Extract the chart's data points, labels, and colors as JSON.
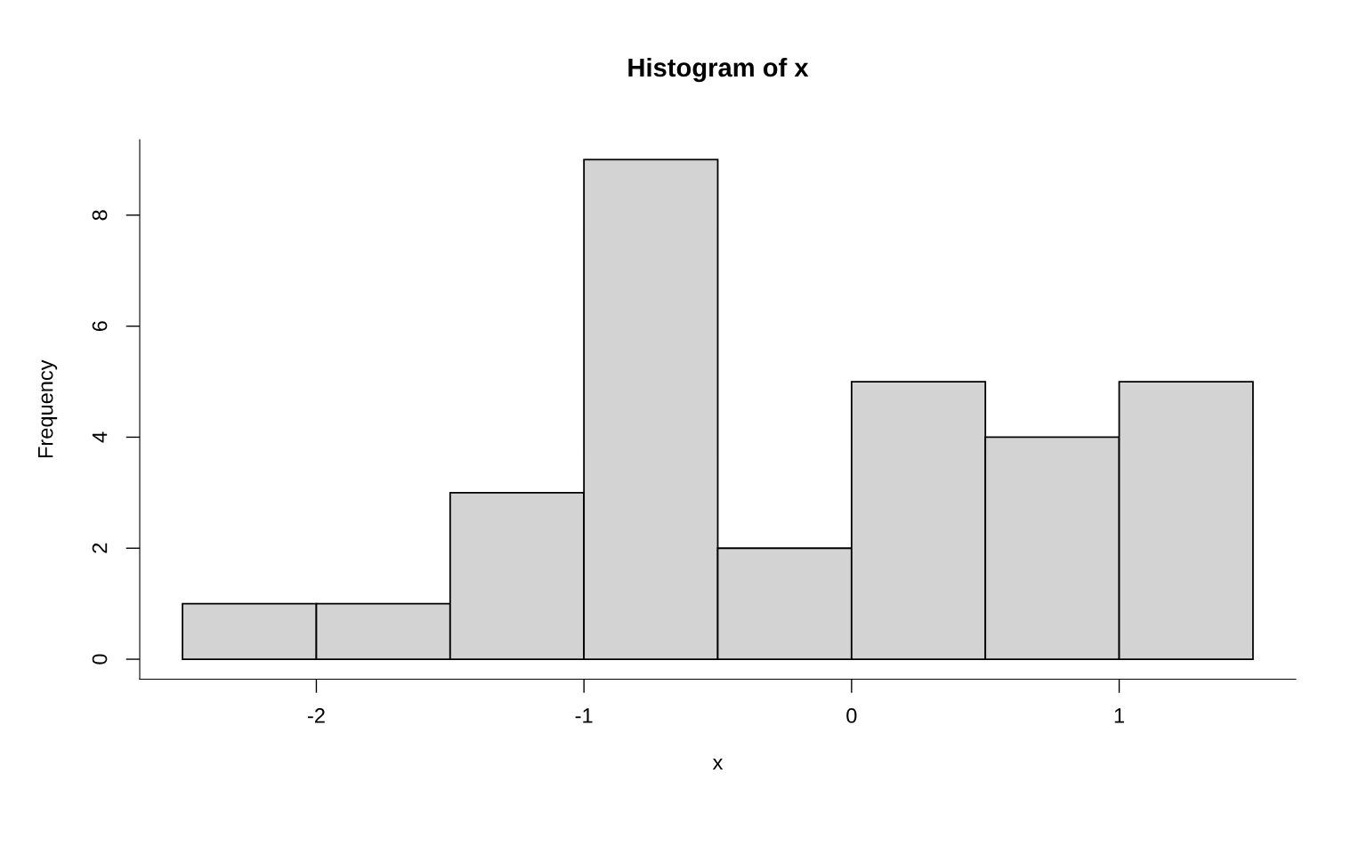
{
  "chart_data": {
    "type": "histogram",
    "title": "Histogram of x",
    "xlabel": "x",
    "ylabel": "Frequency",
    "bins": [
      -2.5,
      -2.0,
      -1.5,
      -1.0,
      -0.5,
      0.0,
      0.5,
      1.0,
      1.5
    ],
    "values": [
      1,
      1,
      3,
      9,
      2,
      5,
      4,
      5
    ],
    "color": "#d3d3d3",
    "xlim": [
      -2.66,
      1.66
    ],
    "ylim": [
      -0.36,
      9.36
    ],
    "xticks": [
      -2,
      -1,
      0,
      1
    ],
    "yticks": [
      0,
      2,
      4,
      6,
      8
    ],
    "grid": false
  }
}
